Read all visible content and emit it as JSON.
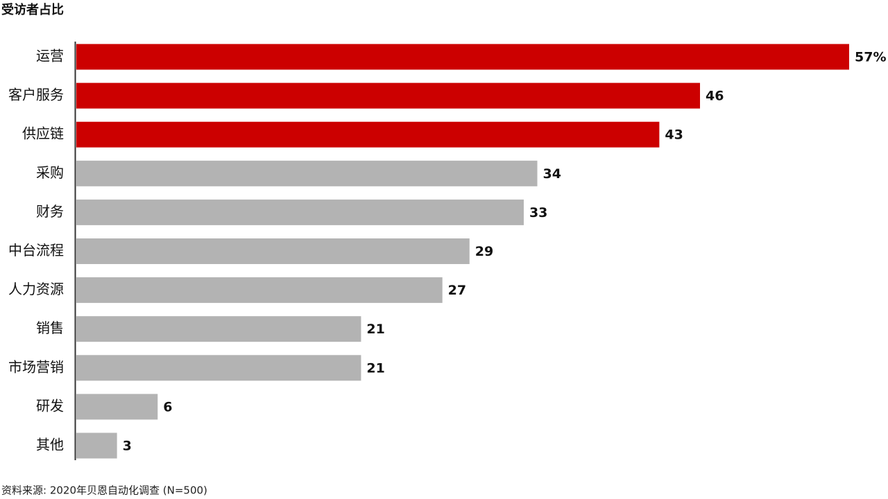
{
  "chart_data": {
    "type": "bar",
    "orientation": "horizontal",
    "title": "受访者占比",
    "categories": [
      "运营",
      "客户服务",
      "供应链",
      "采购",
      "财务",
      "中台流程",
      "人力资源",
      "销售",
      "市场营销",
      "研发",
      "其他"
    ],
    "values": [
      57,
      46,
      43,
      34,
      33,
      29,
      27,
      21,
      21,
      6,
      3
    ],
    "value_labels": [
      "57%",
      "46",
      "43",
      "34",
      "33",
      "29",
      "27",
      "21",
      "21",
      "6",
      "3"
    ],
    "colors": [
      "#cc0000",
      "#cc0000",
      "#cc0000",
      "#b3b3b3",
      "#b3b3b3",
      "#b3b3b3",
      "#b3b3b3",
      "#b3b3b3",
      "#b3b3b3",
      "#b3b3b3",
      "#b3b3b3"
    ],
    "source": "资料来源: 2020年贝恩自动化调查 (N=500)"
  }
}
